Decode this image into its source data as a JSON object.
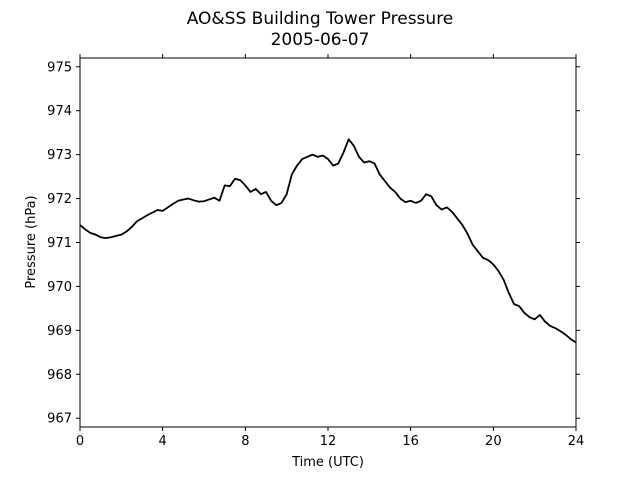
{
  "chart_data": {
    "type": "line",
    "title": "AO&SS Building Tower Pressure",
    "subtitle": "2005-06-07",
    "xlabel": "Time (UTC)",
    "ylabel": "Pressure (hPa)",
    "xlim": [
      0,
      24
    ],
    "ylim": [
      966.8,
      975.2
    ],
    "xticks": [
      0,
      4,
      8,
      12,
      16,
      20,
      24
    ],
    "yticks": [
      967,
      968,
      969,
      970,
      971,
      972,
      973,
      974,
      975
    ],
    "grid": false,
    "line_color": "#000000",
    "series": [
      {
        "x": [
          0,
          0.25,
          0.5,
          0.75,
          1.0,
          1.25,
          1.5,
          1.75,
          2.0,
          2.25,
          2.5,
          2.75,
          3.0,
          3.25,
          3.5,
          3.75,
          4.0,
          4.25,
          4.5,
          4.75,
          5.0,
          5.25,
          5.5,
          5.75,
          6.0,
          6.25,
          6.5,
          6.75,
          7.0,
          7.25,
          7.5,
          7.75,
          8.0,
          8.25,
          8.5,
          8.75,
          9.0,
          9.25,
          9.5,
          9.75,
          10.0,
          10.25,
          10.5,
          10.75,
          11.0,
          11.25,
          11.5,
          11.75,
          12.0,
          12.25,
          12.5,
          12.75,
          13.0,
          13.25,
          13.5,
          13.75,
          14.0,
          14.25,
          14.5,
          14.75,
          15.0,
          15.25,
          15.5,
          15.75,
          16.0,
          16.25,
          16.5,
          16.75,
          17.0,
          17.25,
          17.5,
          17.75,
          18.0,
          18.25,
          18.5,
          18.75,
          19.0,
          19.25,
          19.5,
          19.75,
          20.0,
          20.25,
          20.5,
          20.75,
          21.0,
          21.25,
          21.5,
          21.75,
          22.0,
          22.25,
          22.5,
          22.75,
          23.0,
          23.25,
          23.5,
          23.75,
          24.0
        ],
        "values": [
          971.4,
          971.3,
          971.22,
          971.18,
          971.12,
          971.1,
          971.12,
          971.15,
          971.18,
          971.25,
          971.35,
          971.48,
          971.55,
          971.62,
          971.68,
          971.74,
          971.72,
          971.8,
          971.88,
          971.95,
          971.98,
          972.0,
          971.96,
          971.93,
          971.94,
          971.98,
          972.02,
          971.95,
          972.3,
          972.28,
          972.45,
          972.42,
          972.3,
          972.15,
          972.22,
          972.1,
          972.15,
          971.95,
          971.85,
          971.9,
          972.1,
          972.55,
          972.75,
          972.9,
          972.95,
          973.0,
          972.95,
          972.98,
          972.9,
          972.75,
          972.8,
          973.05,
          973.35,
          973.2,
          972.95,
          972.82,
          972.85,
          972.8,
          972.55,
          972.4,
          972.25,
          972.15,
          972.0,
          971.92,
          971.95,
          971.9,
          971.95,
          972.1,
          972.05,
          971.85,
          971.75,
          971.8,
          971.7,
          971.55,
          971.4,
          971.2,
          970.95,
          970.8,
          970.65,
          970.6,
          970.5,
          970.35,
          970.15,
          969.85,
          969.6,
          969.55,
          969.4,
          969.3,
          969.25,
          969.35,
          969.2,
          969.1,
          969.05,
          968.98,
          968.9,
          968.8,
          968.72
        ]
      }
    ]
  }
}
